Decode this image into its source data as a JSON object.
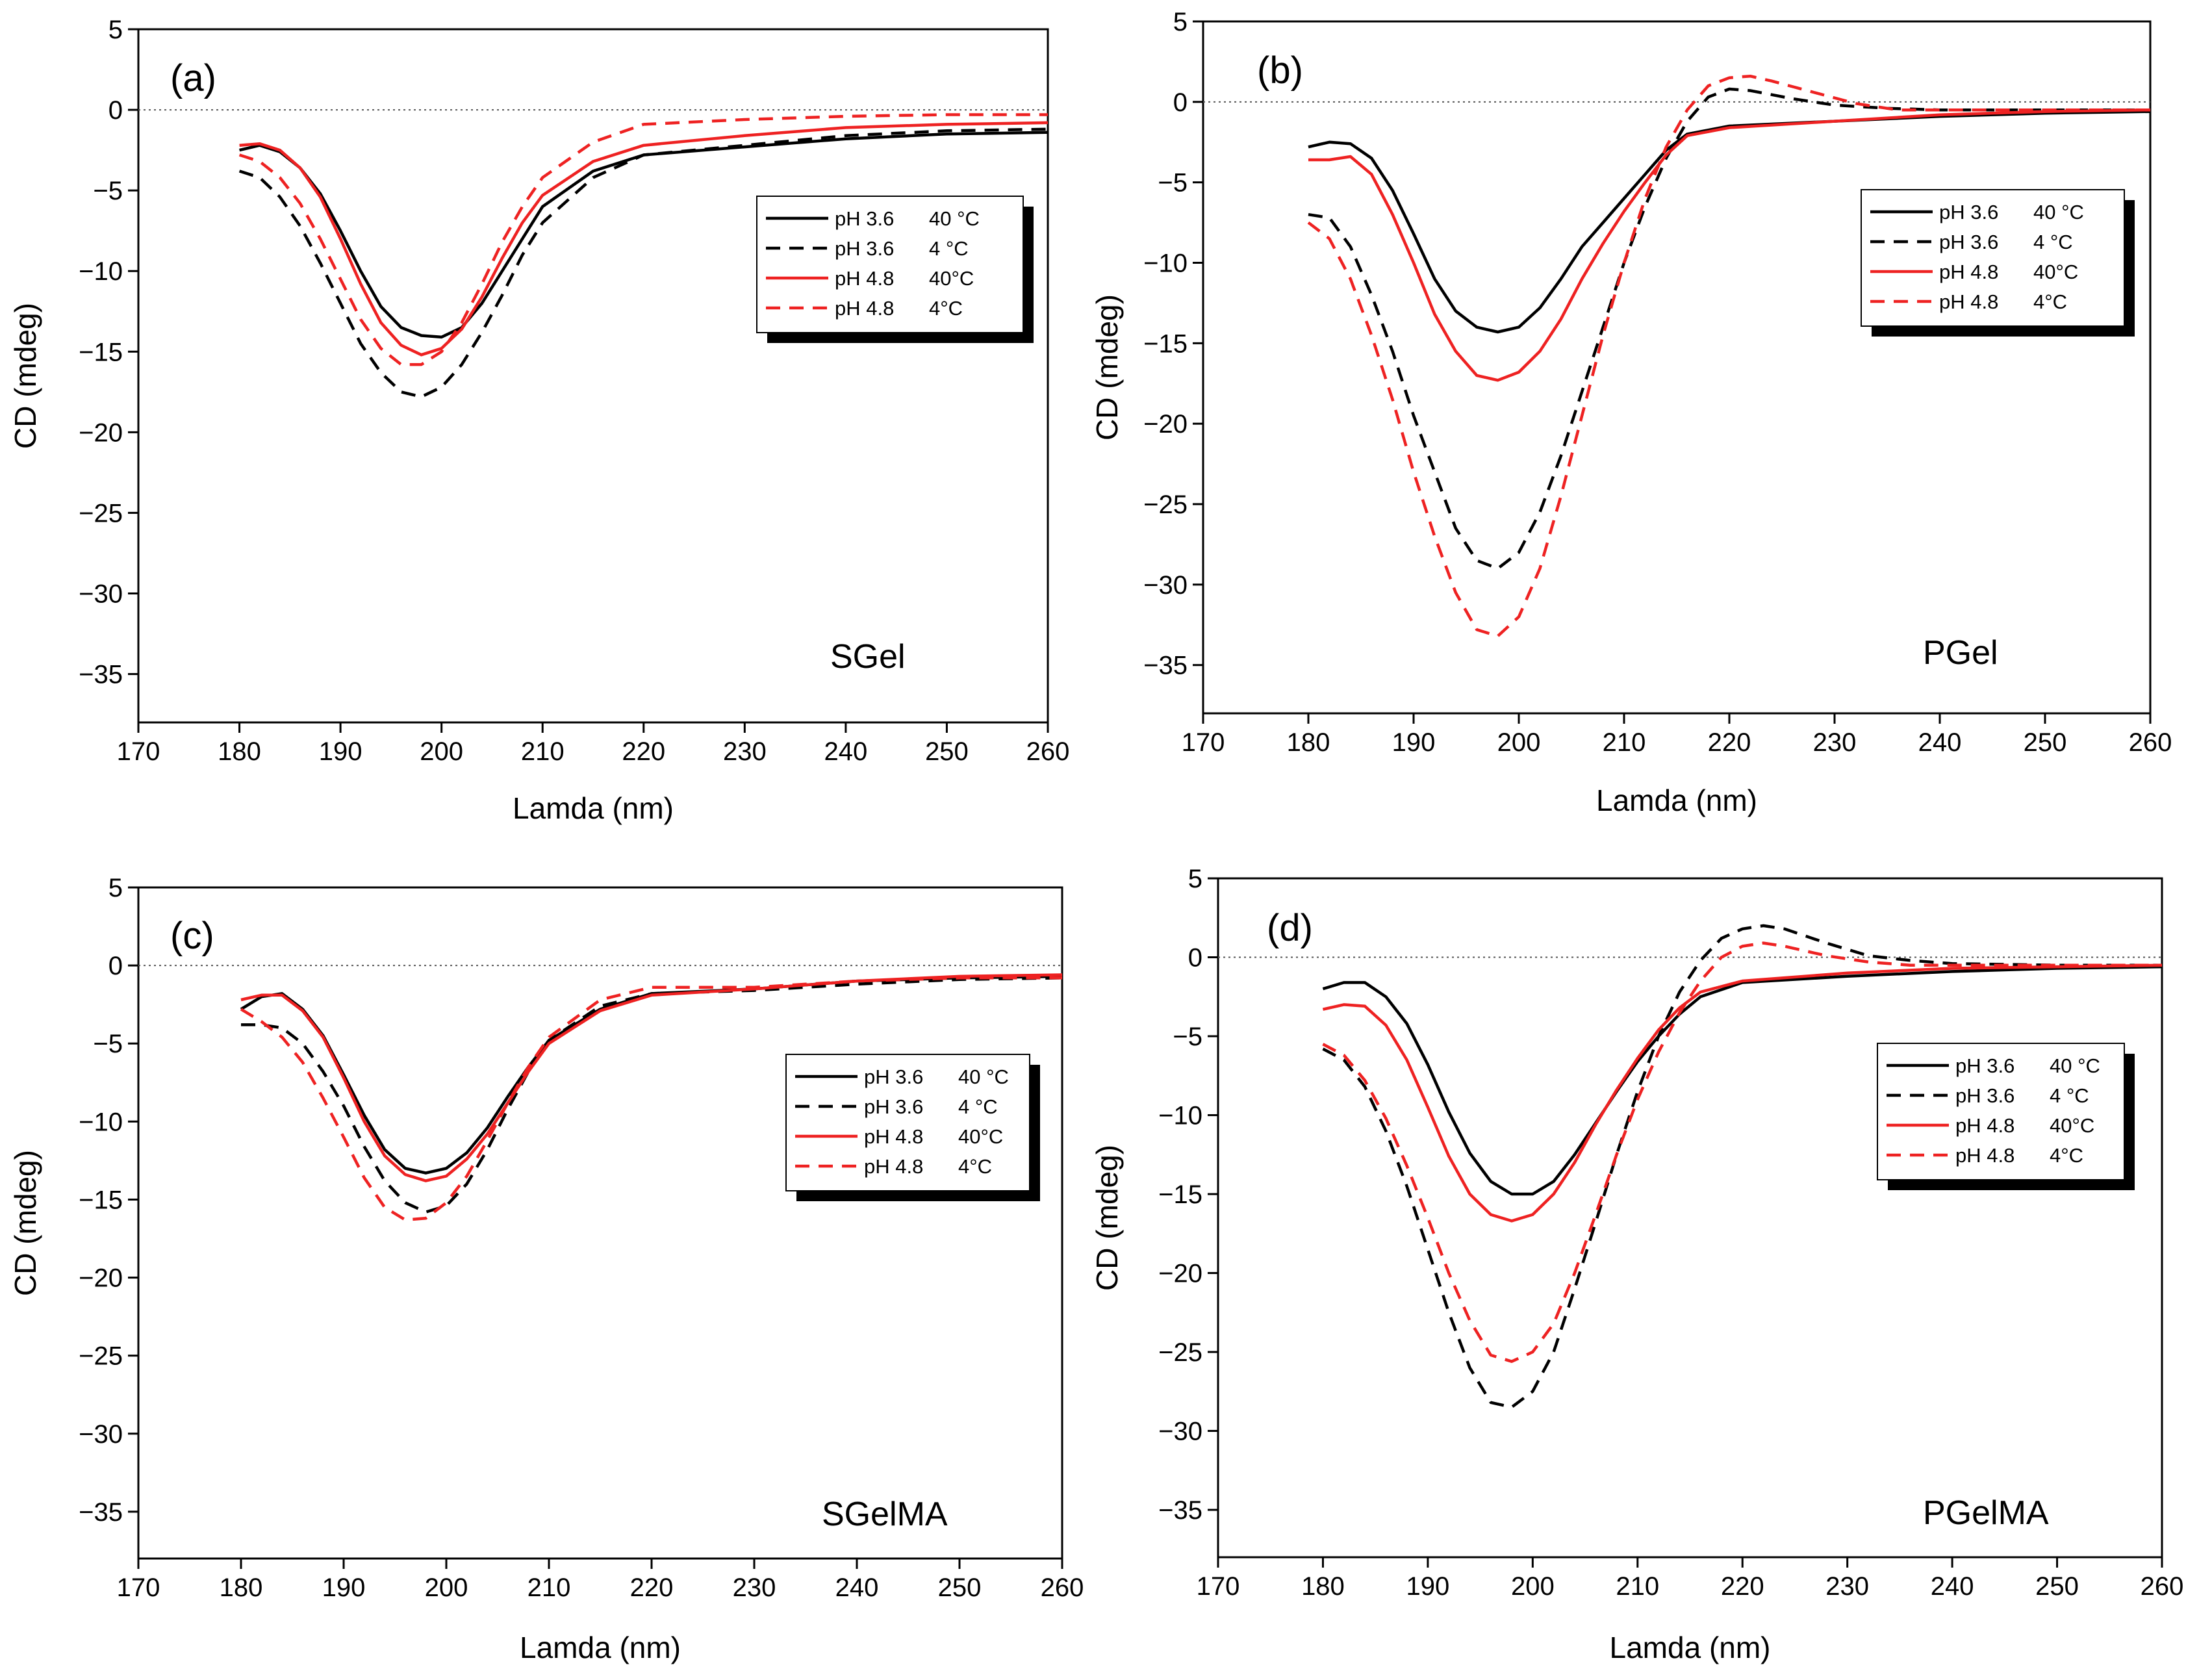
{
  "chart_data": [
    {
      "type": "line",
      "panel_label": "(a)",
      "sample": "SGel",
      "xlabel": "Lamda (nm)",
      "ylabel": "CD (mdeg)",
      "xlim": [
        170,
        260
      ],
      "ylim": [
        -38,
        5
      ],
      "xticks": [
        170,
        180,
        190,
        200,
        210,
        220,
        230,
        240,
        250,
        260
      ],
      "yticks": [
        5,
        0,
        -5,
        -10,
        -15,
        -20,
        -25,
        -30,
        -35
      ],
      "series": [
        {
          "name": "pH 3.6",
          "temp": "40 °C",
          "color": "#000000",
          "style": "solid",
          "x": [
            180,
            182,
            184,
            186,
            188,
            190,
            192,
            194,
            196,
            198,
            200,
            202,
            204,
            206,
            208,
            210,
            215,
            220,
            230,
            240,
            250,
            260
          ],
          "y": [
            -2.5,
            -2.2,
            -2.6,
            -3.6,
            -5.2,
            -7.5,
            -10,
            -12.2,
            -13.5,
            -14,
            -14.1,
            -13.5,
            -12,
            -10,
            -8,
            -6,
            -3.8,
            -2.8,
            -2.3,
            -1.8,
            -1.5,
            -1.4
          ]
        },
        {
          "name": "pH 3.6",
          "temp": "4 °C",
          "color": "#000000",
          "style": "dashed",
          "x": [
            180,
            182,
            184,
            186,
            188,
            190,
            192,
            194,
            196,
            198,
            200,
            202,
            204,
            206,
            208,
            210,
            215,
            220,
            230,
            240,
            250,
            260
          ],
          "y": [
            -3.8,
            -4.2,
            -5.4,
            -7.2,
            -9.5,
            -12,
            -14.5,
            -16.3,
            -17.5,
            -17.8,
            -17.2,
            -15.8,
            -13.8,
            -11.5,
            -9,
            -7,
            -4.2,
            -2.8,
            -2.2,
            -1.6,
            -1.3,
            -1.2
          ]
        },
        {
          "name": "pH 4.8",
          "temp": "40°C",
          "color": "#ee2222",
          "style": "solid",
          "x": [
            180,
            182,
            184,
            186,
            188,
            190,
            192,
            194,
            196,
            198,
            200,
            202,
            204,
            206,
            208,
            210,
            215,
            220,
            230,
            240,
            250,
            260
          ],
          "y": [
            -2.2,
            -2.1,
            -2.5,
            -3.6,
            -5.4,
            -8,
            -10.8,
            -13.2,
            -14.6,
            -15.2,
            -14.8,
            -13.6,
            -11.6,
            -9.2,
            -7,
            -5.3,
            -3.2,
            -2.2,
            -1.6,
            -1.1,
            -0.9,
            -0.8
          ]
        },
        {
          "name": "pH 4.8",
          "temp": "4°C",
          "color": "#ee2222",
          "style": "dashed",
          "x": [
            180,
            182,
            184,
            186,
            188,
            190,
            192,
            194,
            196,
            198,
            200,
            202,
            204,
            206,
            208,
            210,
            215,
            220,
            230,
            240,
            250,
            260
          ],
          "y": [
            -2.8,
            -3.2,
            -4.2,
            -5.8,
            -8,
            -10.5,
            -13,
            -14.8,
            -15.8,
            -15.8,
            -15,
            -13.2,
            -10.8,
            -8.2,
            -6,
            -4.2,
            -2,
            -0.9,
            -0.6,
            -0.4,
            -0.3,
            -0.3
          ]
        }
      ],
      "legend": "right"
    },
    {
      "type": "line",
      "panel_label": "(b)",
      "sample": "PGel",
      "xlabel": "Lamda (nm)",
      "ylabel": "CD (mdeg)",
      "xlim": [
        170,
        260
      ],
      "ylim": [
        -38,
        5
      ],
      "xticks": [
        170,
        180,
        190,
        200,
        210,
        220,
        230,
        240,
        250,
        260
      ],
      "yticks": [
        5,
        0,
        -5,
        -10,
        -15,
        -20,
        -25,
        -30,
        -35
      ],
      "series": [
        {
          "name": "pH 3.6",
          "temp": "40 °C",
          "color": "#000000",
          "style": "solid",
          "x": [
            180,
            182,
            184,
            186,
            188,
            190,
            192,
            194,
            196,
            198,
            200,
            202,
            204,
            206,
            208,
            210,
            212,
            214,
            216,
            220,
            230,
            240,
            250,
            260
          ],
          "y": [
            -2.8,
            -2.5,
            -2.6,
            -3.5,
            -5.5,
            -8.2,
            -11,
            -13,
            -14,
            -14.3,
            -14,
            -12.8,
            -11,
            -9,
            -7.5,
            -6,
            -4.5,
            -3,
            -2,
            -1.5,
            -1.2,
            -0.9,
            -0.7,
            -0.6
          ]
        },
        {
          "name": "pH 3.6",
          "temp": "4 °C",
          "color": "#000000",
          "style": "dashed",
          "x": [
            180,
            182,
            184,
            186,
            188,
            190,
            192,
            194,
            196,
            198,
            200,
            202,
            204,
            206,
            208,
            210,
            212,
            214,
            216,
            218,
            220,
            222,
            226,
            230,
            235,
            240,
            250,
            260
          ],
          "y": [
            -7,
            -7.2,
            -9,
            -12,
            -15.5,
            -19.5,
            -23,
            -26.5,
            -28.5,
            -29,
            -28,
            -25.5,
            -22,
            -18,
            -14,
            -10,
            -6.5,
            -3.5,
            -1.2,
            0.3,
            0.8,
            0.7,
            0.2,
            -0.2,
            -0.4,
            -0.5,
            -0.5,
            -0.5
          ]
        },
        {
          "name": "pH 4.8",
          "temp": "40°C",
          "color": "#ee2222",
          "style": "solid",
          "x": [
            180,
            182,
            184,
            186,
            188,
            190,
            192,
            194,
            196,
            198,
            200,
            202,
            204,
            206,
            208,
            210,
            212,
            214,
            216,
            220,
            230,
            240,
            250,
            260
          ],
          "y": [
            -3.6,
            -3.6,
            -3.4,
            -4.5,
            -7,
            -10,
            -13.2,
            -15.5,
            -17,
            -17.3,
            -16.8,
            -15.5,
            -13.5,
            -11,
            -8.8,
            -6.8,
            -5,
            -3.3,
            -2.1,
            -1.6,
            -1.2,
            -0.8,
            -0.6,
            -0.5
          ]
        },
        {
          "name": "pH 4.8",
          "temp": "4°C",
          "color": "#ee2222",
          "style": "dashed",
          "x": [
            180,
            182,
            184,
            186,
            188,
            190,
            192,
            194,
            196,
            198,
            200,
            202,
            204,
            206,
            208,
            210,
            212,
            214,
            216,
            218,
            220,
            222,
            224,
            228,
            232,
            236,
            240,
            250,
            260
          ],
          "y": [
            -7.5,
            -8.5,
            -11,
            -14.5,
            -18.5,
            -23,
            -27,
            -30.5,
            -32.8,
            -33.2,
            -32,
            -29,
            -24.5,
            -19.5,
            -14.5,
            -10,
            -6,
            -2.8,
            -0.5,
            1,
            1.5,
            1.6,
            1.3,
            0.6,
            -0.1,
            -0.5,
            -0.5,
            -0.5,
            -0.5
          ]
        }
      ],
      "legend": "right"
    },
    {
      "type": "line",
      "panel_label": "(c)",
      "sample": "SGelMA",
      "xlabel": "Lamda (nm)",
      "ylabel": "CD (mdeg)",
      "xlim": [
        170,
        260
      ],
      "ylim": [
        -38,
        5
      ],
      "xticks": [
        170,
        180,
        190,
        200,
        210,
        220,
        230,
        240,
        250,
        260
      ],
      "yticks": [
        5,
        0,
        -5,
        -10,
        -15,
        -20,
        -25,
        -30,
        -35
      ],
      "series": [
        {
          "name": "pH 3.6",
          "temp": "40 °C",
          "color": "#000000",
          "style": "solid",
          "x": [
            180,
            182,
            184,
            186,
            188,
            190,
            192,
            194,
            196,
            198,
            200,
            202,
            204,
            206,
            208,
            210,
            215,
            220,
            230,
            240,
            250,
            260
          ],
          "y": [
            -2.8,
            -2,
            -1.8,
            -2.8,
            -4.5,
            -7,
            -9.6,
            -11.8,
            -13,
            -13.3,
            -13,
            -12,
            -10.4,
            -8.4,
            -6.5,
            -4.8,
            -2.8,
            -1.8,
            -1.5,
            -1,
            -0.8,
            -0.7
          ]
        },
        {
          "name": "pH 3.6",
          "temp": "4 °C",
          "color": "#000000",
          "style": "dashed",
          "x": [
            180,
            182,
            184,
            186,
            188,
            190,
            192,
            194,
            196,
            198,
            200,
            202,
            204,
            206,
            208,
            210,
            215,
            220,
            230,
            240,
            250,
            260
          ],
          "y": [
            -3.8,
            -3.8,
            -4,
            -5,
            -6.8,
            -9,
            -11.6,
            -13.8,
            -15.2,
            -15.8,
            -15.4,
            -14,
            -11.8,
            -9.2,
            -6.8,
            -4.8,
            -2.6,
            -1.8,
            -1.6,
            -1.2,
            -0.9,
            -0.8
          ]
        },
        {
          "name": "pH 4.8",
          "temp": "40°C",
          "color": "#ee2222",
          "style": "solid",
          "x": [
            180,
            182,
            184,
            186,
            188,
            190,
            192,
            194,
            196,
            198,
            200,
            202,
            204,
            206,
            208,
            210,
            215,
            220,
            230,
            240,
            250,
            260
          ],
          "y": [
            -2.2,
            -1.9,
            -1.9,
            -2.9,
            -4.6,
            -7.2,
            -10,
            -12.2,
            -13.4,
            -13.8,
            -13.5,
            -12.4,
            -10.8,
            -8.8,
            -6.8,
            -5,
            -2.9,
            -1.9,
            -1.5,
            -1,
            -0.7,
            -0.6
          ]
        },
        {
          "name": "pH 4.8",
          "temp": "4°C",
          "color": "#ee2222",
          "style": "dashed",
          "x": [
            180,
            182,
            184,
            186,
            188,
            190,
            192,
            194,
            196,
            198,
            200,
            202,
            204,
            206,
            208,
            210,
            215,
            220,
            230,
            240,
            250,
            260
          ],
          "y": [
            -2.8,
            -3.6,
            -4.6,
            -6.2,
            -8.5,
            -11,
            -13.6,
            -15.5,
            -16.3,
            -16.2,
            -15.2,
            -13.5,
            -11.2,
            -8.8,
            -6.5,
            -4.6,
            -2.2,
            -1.4,
            -1.4,
            -1,
            -0.8,
            -0.8
          ]
        }
      ],
      "legend": "right"
    },
    {
      "type": "line",
      "panel_label": "(d)",
      "sample": "PGelMA",
      "xlabel": "Lamda (nm)",
      "ylabel": "CD (mdeg)",
      "xlim": [
        170,
        260
      ],
      "ylim": [
        -38,
        5
      ],
      "xticks": [
        170,
        180,
        190,
        200,
        210,
        220,
        230,
        240,
        250,
        260
      ],
      "yticks": [
        5,
        0,
        -5,
        -10,
        -15,
        -20,
        -25,
        -30,
        -35
      ],
      "series": [
        {
          "name": "pH 3.6",
          "temp": "40 °C",
          "color": "#000000",
          "style": "solid",
          "x": [
            180,
            182,
            184,
            186,
            188,
            190,
            192,
            194,
            196,
            198,
            200,
            202,
            204,
            206,
            208,
            210,
            212,
            214,
            216,
            220,
            230,
            240,
            250,
            260
          ],
          "y": [
            -2,
            -1.6,
            -1.6,
            -2.5,
            -4.2,
            -6.8,
            -9.8,
            -12.4,
            -14.2,
            -15,
            -15,
            -14.2,
            -12.5,
            -10.5,
            -8.5,
            -6.6,
            -5,
            -3.6,
            -2.5,
            -1.6,
            -1.2,
            -0.9,
            -0.7,
            -0.6
          ]
        },
        {
          "name": "pH 3.6",
          "temp": "4 °C",
          "color": "#000000",
          "style": "dashed",
          "x": [
            180,
            182,
            184,
            186,
            188,
            190,
            192,
            194,
            196,
            198,
            200,
            202,
            204,
            206,
            208,
            210,
            212,
            214,
            216,
            218,
            220,
            222,
            224,
            228,
            232,
            236,
            240,
            250,
            260
          ],
          "y": [
            -5.8,
            -6.5,
            -8.2,
            -11,
            -14.5,
            -18.5,
            -22.5,
            -26,
            -28.2,
            -28.5,
            -27.5,
            -25,
            -21,
            -16.8,
            -12.5,
            -8.5,
            -5,
            -2.2,
            -0.2,
            1.2,
            1.8,
            2,
            1.8,
            0.9,
            0.1,
            -0.2,
            -0.4,
            -0.5,
            -0.5
          ]
        },
        {
          "name": "pH 4.8",
          "temp": "40°C",
          "color": "#ee2222",
          "style": "solid",
          "x": [
            180,
            182,
            184,
            186,
            188,
            190,
            192,
            194,
            196,
            198,
            200,
            202,
            204,
            206,
            208,
            210,
            212,
            214,
            216,
            220,
            230,
            240,
            250,
            260
          ],
          "y": [
            -3.3,
            -3,
            -3.1,
            -4.3,
            -6.5,
            -9.5,
            -12.6,
            -15,
            -16.3,
            -16.7,
            -16.3,
            -15,
            -13,
            -10.6,
            -8.4,
            -6.4,
            -4.6,
            -3.2,
            -2.2,
            -1.5,
            -1,
            -0.7,
            -0.6,
            -0.5
          ]
        },
        {
          "name": "pH 4.8",
          "temp": "4°C",
          "color": "#ee2222",
          "style": "dashed",
          "x": [
            180,
            182,
            184,
            186,
            188,
            190,
            192,
            194,
            196,
            198,
            200,
            202,
            204,
            206,
            208,
            210,
            212,
            214,
            216,
            218,
            220,
            222,
            224,
            228,
            232,
            236,
            240,
            250,
            260
          ],
          "y": [
            -5.5,
            -6.2,
            -7.8,
            -10.2,
            -13.2,
            -16.5,
            -20,
            -23,
            -25.2,
            -25.6,
            -25,
            -23.2,
            -20,
            -16.3,
            -12.5,
            -9,
            -6,
            -3.5,
            -1.5,
            0,
            0.7,
            0.9,
            0.7,
            0.1,
            -0.3,
            -0.5,
            -0.5,
            -0.5,
            -0.5
          ]
        }
      ],
      "legend": "right"
    }
  ]
}
